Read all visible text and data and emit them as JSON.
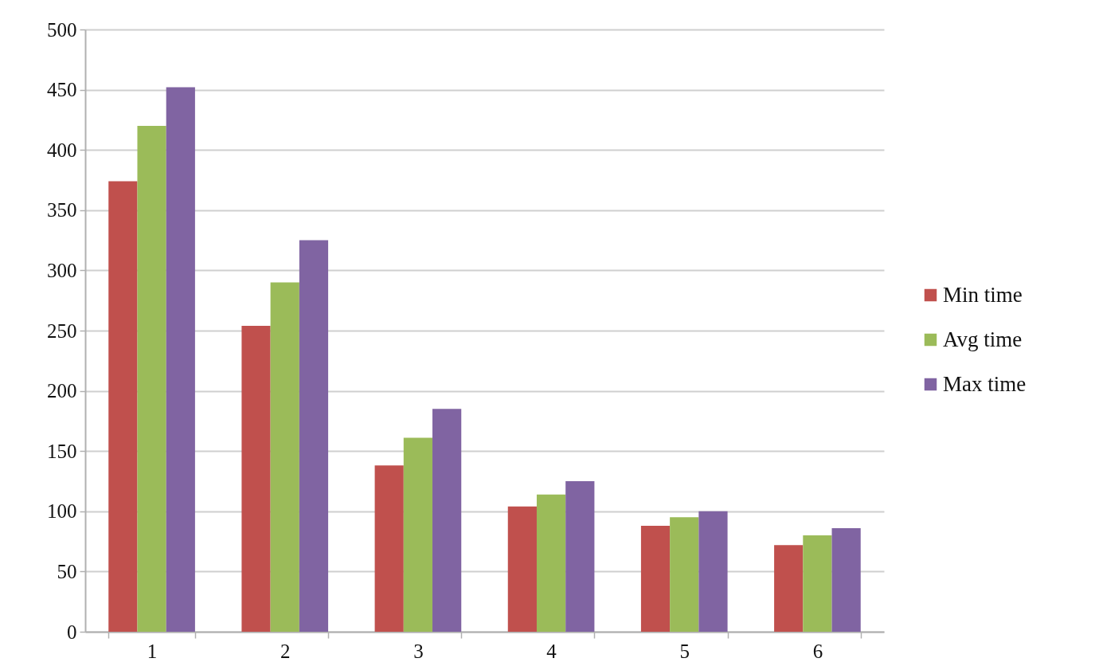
{
  "chart_data": {
    "type": "bar",
    "categories": [
      "1",
      "2",
      "3",
      "4",
      "5",
      "6"
    ],
    "series": [
      {
        "name": "Min time",
        "color": "#c0504d",
        "values": [
          374,
          254,
          138,
          104,
          88,
          72
        ]
      },
      {
        "name": "Avg time",
        "color": "#9bbb59",
        "values": [
          420,
          290,
          161,
          114,
          95,
          80
        ]
      },
      {
        "name": "Max time",
        "color": "#8064a2",
        "values": [
          452,
          325,
          185,
          125,
          100,
          86
        ]
      }
    ],
    "ylim": [
      0,
      500
    ],
    "yticks": [
      0,
      50,
      100,
      150,
      200,
      250,
      300,
      350,
      400,
      450,
      500
    ],
    "grid": "y",
    "legend": "right"
  }
}
